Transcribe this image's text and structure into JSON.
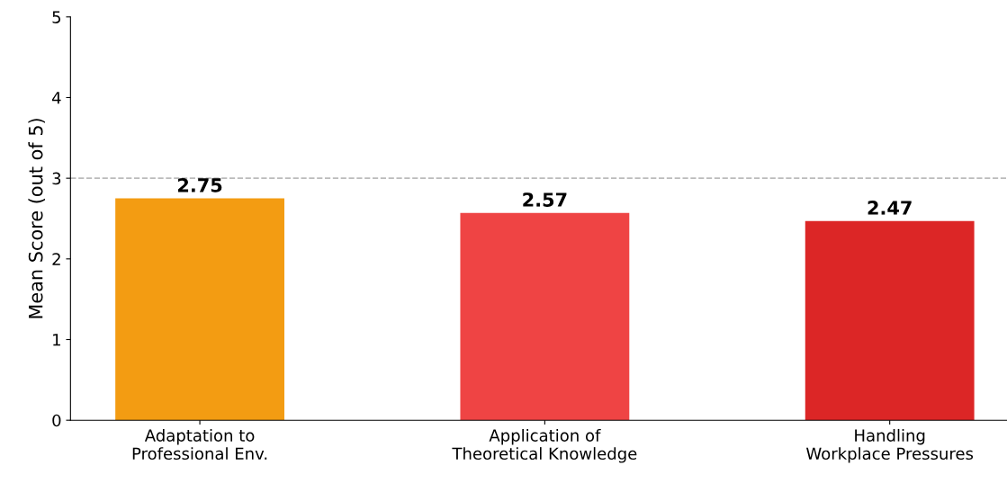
{
  "chart_data": {
    "type": "bar",
    "ylabel": "Mean Score (out of 5)",
    "categories": [
      "Adaptation to\nProfessional Env.",
      "Application of\nTheoretical Knowledge",
      "Handling\nWorkplace Pressures"
    ],
    "values": [
      2.75,
      2.57,
      2.47
    ],
    "colors": [
      "#f39c12",
      "#ef4444",
      "#dc2626"
    ],
    "ylim": [
      0,
      5
    ],
    "yticks": [
      0,
      1,
      2,
      3,
      4,
      5
    ],
    "ref_lines": [
      {
        "axis": "y",
        "value": 3,
        "color": "#bbbbbb",
        "line_style": "dashed"
      }
    ],
    "data_labels": true,
    "grid": false,
    "legend": false
  }
}
